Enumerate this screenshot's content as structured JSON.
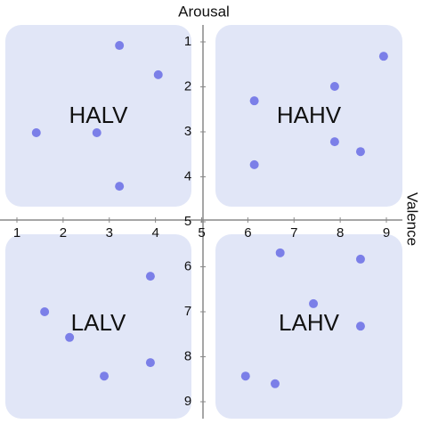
{
  "chart_data": {
    "type": "scatter",
    "xlabel": "Valence",
    "ylabel": "Arousal",
    "quadrants": [
      "HALV",
      "HAHV",
      "LALV",
      "LAHV"
    ],
    "x": [
      3.22,
      4.06,
      1.42,
      2.73,
      3.22,
      8.94,
      7.88,
      6.14,
      7.88,
      8.44,
      6.14,
      3.89,
      1.6,
      2.14,
      3.89,
      2.89,
      6.7,
      8.44,
      7.42,
      8.44,
      5.95,
      6.59
    ],
    "values": [
      1.08,
      1.73,
      3.02,
      3.02,
      4.21,
      1.32,
      1.99,
      2.31,
      3.22,
      3.44,
      3.73,
      6.21,
      7.0,
      7.57,
      8.13,
      8.43,
      5.69,
      5.83,
      6.82,
      7.32,
      8.43,
      8.6
    ],
    "color": "#7b7fe8",
    "quadrant_color": "#e1e6f7",
    "xlim": [
      1,
      9
    ],
    "ylim": [
      1,
      9
    ],
    "xticks": [
      1,
      2,
      3,
      4,
      5,
      6,
      7,
      8,
      9
    ],
    "yticks": [
      1,
      2,
      3,
      4,
      5,
      6,
      7,
      8,
      9
    ],
    "y_inverted": true
  }
}
